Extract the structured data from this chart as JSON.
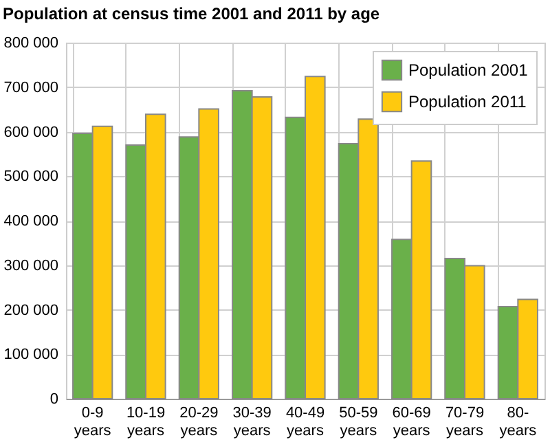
{
  "chart_data": {
    "type": "bar",
    "title": "Population at census time 2001 and 2011 by age",
    "categories": [
      "0-9 years",
      "10-19 years",
      "20-29 years",
      "30-39 years",
      "40-49 years",
      "50-59 years",
      "60-69 years",
      "70-79 years",
      "80- years"
    ],
    "series": [
      {
        "name": "Population 2001",
        "color": "#6ab04a",
        "values": [
          596000,
          570000,
          588000,
          692000,
          632000,
          573000,
          358000,
          315000,
          207000
        ]
      },
      {
        "name": "Population 2011",
        "color": "#ffc90e",
        "values": [
          612000,
          639000,
          651000,
          678000,
          724000,
          628000,
          534000,
          299000,
          223000
        ]
      }
    ],
    "ylim": [
      0,
      800000
    ],
    "yticks": [
      {
        "value": 0,
        "label": "0"
      },
      {
        "value": 100000,
        "label": "100 000"
      },
      {
        "value": 200000,
        "label": "200 000"
      },
      {
        "value": 300000,
        "label": "300 000"
      },
      {
        "value": 400000,
        "label": "400 000"
      },
      {
        "value": 500000,
        "label": "500 000"
      },
      {
        "value": 600000,
        "label": "600 000"
      },
      {
        "value": 700000,
        "label": "700 000"
      },
      {
        "value": 800000,
        "label": "800 000"
      }
    ],
    "grid": true,
    "legend": "top right"
  }
}
